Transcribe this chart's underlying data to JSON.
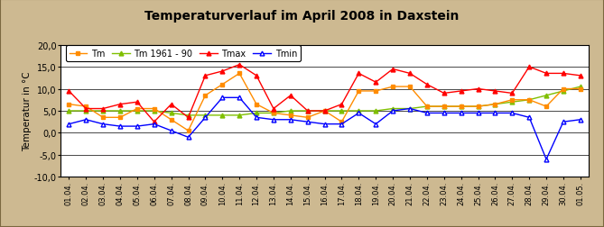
{
  "title": "Temperaturverlauf im April 2008 in Daxstein",
  "ylabel": "Temperatur in °C",
  "ylim": [
    -10.0,
    20.0
  ],
  "yticks": [
    -10.0,
    -5.0,
    0.0,
    5.0,
    10.0,
    15.0,
    20.0
  ],
  "ytick_labels": [
    "-10,0",
    "-5,0",
    "0,0",
    "5,0",
    "10,0",
    "15,0",
    "20,0"
  ],
  "x_labels": [
    "01.04.",
    "02.04.",
    "03.04.",
    "04.04.",
    "05.04.",
    "06.04.",
    "07.04.",
    "08.04.",
    "09.04.",
    "10.04.",
    "11.04.",
    "12.04.",
    "13.04.",
    "14.04.",
    "15.04.",
    "16.04.",
    "17.04.",
    "18.04.",
    "19.04.",
    "20.04.",
    "21.04.",
    "22.04.",
    "23.04.",
    "24.04.",
    "25.04.",
    "26.04.",
    "27.04.",
    "28.04.",
    "29.04.",
    "30.04.",
    "01.05."
  ],
  "Tm": [
    6.5,
    6.0,
    3.5,
    3.5,
    5.5,
    5.5,
    3.0,
    0.5,
    8.5,
    11.0,
    13.5,
    6.5,
    4.5,
    4.0,
    3.5,
    5.0,
    2.5,
    9.5,
    9.5,
    10.5,
    10.5,
    6.0,
    6.0,
    6.0,
    6.0,
    6.5,
    7.5,
    7.5,
    6.0,
    10.0,
    10.0
  ],
  "Tm_clim": [
    5.0,
    5.0,
    5.0,
    5.0,
    5.0,
    5.0,
    4.5,
    4.0,
    4.0,
    4.0,
    4.0,
    4.5,
    4.5,
    5.0,
    5.0,
    5.0,
    5.0,
    5.0,
    5.0,
    5.5,
    5.5,
    6.0,
    6.0,
    6.0,
    6.0,
    6.5,
    7.0,
    7.5,
    8.5,
    9.5,
    10.5
  ],
  "Tmax": [
    9.5,
    5.5,
    5.5,
    6.5,
    7.0,
    2.5,
    6.5,
    3.5,
    13.0,
    14.0,
    15.5,
    13.0,
    5.5,
    8.5,
    5.0,
    5.0,
    6.5,
    13.5,
    11.5,
    14.5,
    13.5,
    11.0,
    9.0,
    9.5,
    10.0,
    9.5,
    9.0,
    15.0,
    13.5,
    13.5,
    13.0
  ],
  "Tmin": [
    2.0,
    3.0,
    2.0,
    1.5,
    1.5,
    2.0,
    0.5,
    -1.0,
    3.5,
    8.0,
    8.0,
    3.5,
    3.0,
    3.0,
    2.5,
    2.0,
    2.0,
    4.5,
    2.0,
    5.0,
    5.5,
    4.5,
    4.5,
    4.5,
    4.5,
    4.5,
    4.5,
    3.5,
    -6.0,
    2.5,
    3.0
  ],
  "color_Tm": "#FF8C00",
  "color_clim": "#7FBF00",
  "color_Tmax": "#FF0000",
  "color_Tmin": "#0000FF",
  "bg_color": "#CDB991",
  "plot_bg": "#FFFFFF",
  "border_color": "#7B6840",
  "title_fontsize": 10,
  "axis_fontsize": 7.5,
  "tick_fontsize": 7.0
}
